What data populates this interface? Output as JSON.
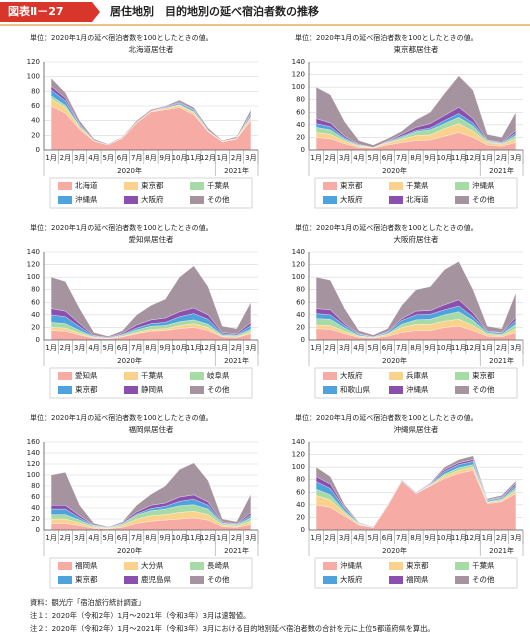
{
  "header": {
    "figure_label": "図表Ⅱ－27",
    "title": "居住地別　目的地別の延べ宿泊者数の推移"
  },
  "footnotes": [
    "資料：観光庁「宿泊旅行統計調査」",
    "注１：2020年（令和2年）1月～2021年（令和3年）3月は速報値。",
    "注２：2020年（令和2年）1月～2021年（令和3年）3月における目的地別延べ宿泊者数の合計を元に上位5都道府県を算出。"
  ],
  "chart_data": [
    {
      "type": "area",
      "stacked": true,
      "grid": true,
      "note": "単位：2020年1月の延べ宿泊者数を100としたときの値。",
      "title": "北海道居住者",
      "categories": [
        "1月",
        "2月",
        "3月",
        "4月",
        "5月",
        "6月",
        "7月",
        "8月",
        "9月",
        "10月",
        "11月",
        "12月",
        "1月",
        "2月",
        "3月"
      ],
      "years": [
        "2020年",
        "2021年"
      ],
      "ylim": [
        0,
        120
      ],
      "yticks": [
        0,
        20,
        40,
        60,
        80,
        100,
        120
      ],
      "series": [
        {
          "name": "北海道",
          "color": "#f6aba4",
          "values": [
            60,
            50,
            28,
            12,
            7,
            16,
            37,
            52,
            55,
            58,
            48,
            25,
            11,
            15,
            40
          ]
        },
        {
          "name": "東京都",
          "color": "#fad28c",
          "values": [
            10,
            8,
            3,
            1,
            0,
            1,
            1,
            1,
            2,
            3,
            3,
            1,
            1,
            1,
            4
          ]
        },
        {
          "name": "千葉県",
          "color": "#a7dba6",
          "values": [
            4,
            3,
            1,
            0,
            0,
            0,
            0,
            0,
            0,
            1,
            1,
            0,
            0,
            0,
            1
          ]
        },
        {
          "name": "沖縄県",
          "color": "#4ea3dc",
          "values": [
            8,
            6,
            2,
            0,
            0,
            0,
            0,
            0,
            1,
            2,
            2,
            1,
            0,
            0,
            3
          ]
        },
        {
          "name": "大阪府",
          "color": "#8b4fae",
          "values": [
            5,
            4,
            1,
            0,
            0,
            0,
            0,
            0,
            1,
            1,
            1,
            0,
            0,
            0,
            2
          ]
        },
        {
          "name": "その他",
          "color": "#a593a0",
          "values": [
            11,
            7,
            5,
            2,
            1,
            1,
            2,
            2,
            1,
            3,
            3,
            3,
            1,
            2,
            5
          ]
        }
      ]
    },
    {
      "type": "area",
      "stacked": true,
      "grid": true,
      "note": "単位：2020年1月の延べ宿泊者数を100としたときの値。",
      "title": "東京都居住者",
      "categories": [
        "1月",
        "2月",
        "3月",
        "4月",
        "5月",
        "6月",
        "7月",
        "8月",
        "9月",
        "10月",
        "11月",
        "12月",
        "1月",
        "2月",
        "3月"
      ],
      "years": [
        "2020年",
        "2021年"
      ],
      "ylim": [
        0,
        140
      ],
      "yticks": [
        0,
        20,
        40,
        60,
        80,
        100,
        120,
        140
      ],
      "series": [
        {
          "name": "東京都",
          "color": "#f6aba4",
          "values": [
            20,
            18,
            10,
            4,
            3,
            8,
            12,
            15,
            16,
            22,
            28,
            20,
            8,
            6,
            12
          ]
        },
        {
          "name": "千葉県",
          "color": "#fad28c",
          "values": [
            8,
            7,
            4,
            2,
            1,
            3,
            5,
            8,
            8,
            12,
            14,
            10,
            4,
            3,
            6
          ]
        },
        {
          "name": "沖縄県",
          "color": "#a7dba6",
          "values": [
            8,
            7,
            3,
            1,
            0,
            1,
            3,
            6,
            8,
            8,
            10,
            8,
            2,
            1,
            5
          ]
        },
        {
          "name": "大阪府",
          "color": "#4ea3dc",
          "values": [
            6,
            5,
            2,
            1,
            0,
            1,
            2,
            2,
            3,
            5,
            6,
            5,
            1,
            1,
            4
          ]
        },
        {
          "name": "北海道",
          "color": "#8b4fae",
          "values": [
            8,
            6,
            3,
            1,
            0,
            1,
            3,
            5,
            7,
            8,
            10,
            7,
            1,
            1,
            4
          ]
        },
        {
          "name": "その他",
          "color": "#a593a0",
          "values": [
            50,
            45,
            23,
            6,
            4,
            4,
            5,
            12,
            18,
            35,
            50,
            45,
            9,
            8,
            29
          ]
        }
      ]
    },
    {
      "type": "area",
      "stacked": true,
      "grid": true,
      "note": "単位：2020年1月の延べ宿泊者数を100としたときの値。",
      "title": "愛知県居住者",
      "categories": [
        "1月",
        "2月",
        "3月",
        "4月",
        "5月",
        "6月",
        "7月",
        "8月",
        "9月",
        "10月",
        "11月",
        "12月",
        "1月",
        "2月",
        "3月"
      ],
      "years": [
        "2020年",
        "2021年"
      ],
      "ylim": [
        0,
        140
      ],
      "yticks": [
        0,
        20,
        40,
        60,
        80,
        100,
        120,
        140
      ],
      "series": [
        {
          "name": "愛知県",
          "color": "#f6aba4",
          "values": [
            15,
            14,
            8,
            3,
            2,
            5,
            10,
            14,
            15,
            18,
            20,
            15,
            5,
            4,
            10
          ]
        },
        {
          "name": "千葉県",
          "color": "#fad28c",
          "values": [
            5,
            5,
            3,
            1,
            0,
            1,
            2,
            3,
            3,
            5,
            6,
            5,
            1,
            1,
            3
          ]
        },
        {
          "name": "岐阜県",
          "color": "#a7dba6",
          "values": [
            8,
            7,
            4,
            1,
            1,
            2,
            4,
            5,
            5,
            6,
            6,
            5,
            2,
            2,
            4
          ]
        },
        {
          "name": "東京都",
          "color": "#4ea3dc",
          "values": [
            12,
            11,
            6,
            1,
            0,
            1,
            3,
            4,
            5,
            8,
            10,
            8,
            2,
            1,
            6
          ]
        },
        {
          "name": "静岡県",
          "color": "#8b4fae",
          "values": [
            10,
            9,
            5,
            1,
            1,
            2,
            5,
            6,
            7,
            8,
            9,
            7,
            2,
            2,
            5
          ]
        },
        {
          "name": "その他",
          "color": "#a593a0",
          "values": [
            50,
            47,
            24,
            5,
            2,
            4,
            16,
            23,
            30,
            55,
            67,
            45,
            10,
            8,
            32
          ]
        }
      ]
    },
    {
      "type": "area",
      "stacked": true,
      "grid": true,
      "note": "単位：2020年1月の延べ宿泊者数を100としたときの値。",
      "title": "大阪府居住者",
      "categories": [
        "1月",
        "2月",
        "3月",
        "4月",
        "5月",
        "6月",
        "7月",
        "8月",
        "9月",
        "10月",
        "11月",
        "12月",
        "1月",
        "2月",
        "3月"
      ],
      "years": [
        "2020年",
        "2021年"
      ],
      "ylim": [
        0,
        140
      ],
      "yticks": [
        0,
        20,
        40,
        60,
        80,
        100,
        120,
        140
      ],
      "series": [
        {
          "name": "大阪府",
          "color": "#f6aba4",
          "values": [
            18,
            17,
            10,
            4,
            3,
            6,
            12,
            15,
            15,
            20,
            22,
            15,
            6,
            5,
            12
          ]
        },
        {
          "name": "兵庫県",
          "color": "#fad28c",
          "values": [
            6,
            6,
            4,
            2,
            1,
            3,
            8,
            10,
            10,
            10,
            11,
            8,
            3,
            2,
            6
          ]
        },
        {
          "name": "東京都",
          "color": "#a7dba6",
          "values": [
            10,
            10,
            5,
            1,
            0,
            1,
            5,
            7,
            8,
            10,
            12,
            8,
            2,
            2,
            7
          ]
        },
        {
          "name": "和歌山県",
          "color": "#4ea3dc",
          "values": [
            8,
            7,
            4,
            2,
            1,
            2,
            6,
            8,
            8,
            8,
            9,
            6,
            2,
            2,
            6
          ]
        },
        {
          "name": "沖縄県",
          "color": "#8b4fae",
          "values": [
            8,
            8,
            3,
            1,
            0,
            1,
            3,
            6,
            6,
            8,
            10,
            6,
            1,
            1,
            5
          ]
        },
        {
          "name": "その他",
          "color": "#a593a0",
          "values": [
            50,
            47,
            24,
            5,
            3,
            5,
            21,
            34,
            38,
            56,
            61,
            37,
            8,
            6,
            39
          ]
        }
      ]
    },
    {
      "type": "area",
      "stacked": true,
      "grid": true,
      "note": "単位：2020年1月の延べ宿泊者数を100としたときの値。",
      "title": "福岡県居住者",
      "categories": [
        "1月",
        "2月",
        "3月",
        "4月",
        "5月",
        "6月",
        "7月",
        "8月",
        "9月",
        "10月",
        "11月",
        "12月",
        "1月",
        "2月",
        "3月"
      ],
      "years": [
        "2020年",
        "2021年"
      ],
      "ylim": [
        0,
        160
      ],
      "yticks": [
        0,
        20,
        40,
        60,
        80,
        100,
        120,
        140,
        160
      ],
      "series": [
        {
          "name": "福岡県",
          "color": "#f6aba4",
          "values": [
            12,
            12,
            8,
            3,
            2,
            5,
            12,
            16,
            18,
            20,
            22,
            18,
            6,
            5,
            10
          ]
        },
        {
          "name": "大分県",
          "color": "#fad28c",
          "values": [
            8,
            8,
            5,
            2,
            1,
            3,
            8,
            10,
            10,
            12,
            12,
            10,
            3,
            2,
            6
          ]
        },
        {
          "name": "長崎県",
          "color": "#a7dba6",
          "values": [
            8,
            8,
            5,
            2,
            1,
            3,
            7,
            9,
            10,
            12,
            12,
            10,
            3,
            2,
            6
          ]
        },
        {
          "name": "東京都",
          "color": "#4ea3dc",
          "values": [
            10,
            10,
            4,
            1,
            0,
            1,
            2,
            4,
            5,
            8,
            10,
            7,
            1,
            1,
            5
          ]
        },
        {
          "name": "鹿児島県",
          "color": "#8b4fae",
          "values": [
            7,
            7,
            4,
            1,
            1,
            2,
            4,
            6,
            6,
            8,
            8,
            6,
            2,
            1,
            5
          ]
        },
        {
          "name": "その他",
          "color": "#a593a0",
          "values": [
            55,
            60,
            19,
            3,
            1,
            1,
            12,
            20,
            31,
            50,
            58,
            39,
            5,
            4,
            33
          ]
        }
      ]
    },
    {
      "type": "area",
      "stacked": true,
      "grid": true,
      "note": "単位：2020年1月の延べ宿泊者数を100としたときの値。",
      "title": "沖縄県居住者",
      "categories": [
        "1月",
        "2月",
        "3月",
        "4月",
        "5月",
        "6月",
        "7月",
        "8月",
        "9月",
        "10月",
        "11月",
        "12月",
        "1月",
        "2月",
        "3月"
      ],
      "years": [
        "2020年",
        "2021年"
      ],
      "ylim": [
        0,
        140
      ],
      "yticks": [
        0,
        20,
        40,
        60,
        80,
        100,
        120,
        140
      ],
      "series": [
        {
          "name": "沖縄県",
          "color": "#f6aba4",
          "values": [
            40,
            36,
            22,
            8,
            4,
            38,
            78,
            58,
            70,
            82,
            90,
            95,
            42,
            45,
            58
          ]
        },
        {
          "name": "東京都",
          "color": "#fad28c",
          "values": [
            15,
            12,
            5,
            1,
            0,
            0,
            0,
            0,
            1,
            4,
            5,
            5,
            2,
            2,
            5
          ]
        },
        {
          "name": "千葉県",
          "color": "#a7dba6",
          "values": [
            10,
            8,
            3,
            1,
            0,
            0,
            0,
            0,
            1,
            3,
            4,
            4,
            1,
            2,
            4
          ]
        },
        {
          "name": "大阪府",
          "color": "#4ea3dc",
          "values": [
            12,
            10,
            4,
            1,
            0,
            1,
            1,
            1,
            1,
            4,
            5,
            5,
            2,
            2,
            4
          ]
        },
        {
          "name": "福岡県",
          "color": "#8b4fae",
          "values": [
            8,
            7,
            2,
            0,
            0,
            0,
            0,
            0,
            1,
            3,
            3,
            3,
            1,
            1,
            3
          ]
        },
        {
          "name": "その他",
          "color": "#a593a0",
          "values": [
            15,
            12,
            4,
            1,
            1,
            1,
            1,
            1,
            1,
            4,
            5,
            6,
            2,
            3,
            4
          ]
        }
      ]
    }
  ]
}
